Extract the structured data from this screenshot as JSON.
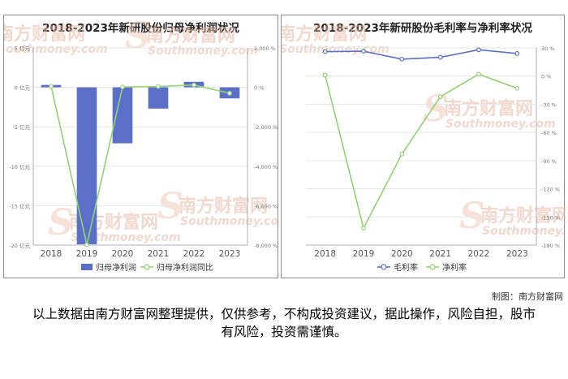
{
  "credit": "制图：南方财富网",
  "disclaimer": "以上数据由南方财富网整理提供，仅供参考，不构成投资建议，据此操作，风险自担，股市有风险，投资需谨慎。",
  "watermark": {
    "cn": "南方财富网",
    "en": "Southmoney.com"
  },
  "colors": {
    "bar": "#5b6fc8",
    "line_green": "#90d372",
    "line_blue": "#5b6fc8",
    "axis": "#b0b0b0"
  },
  "chart_data": [
    {
      "type": "bar",
      "title": "2018-2023年新研股份归母净利润状况",
      "categories": [
        "2018",
        "2019",
        "2020",
        "2021",
        "2022",
        "2023"
      ],
      "y_left": {
        "ticks": [
          5,
          0,
          -5,
          -10,
          -15,
          -20
        ],
        "tick_labels": [
          "5 亿元",
          "0 亿元",
          "-5 亿元",
          "-10 亿元",
          "-15 亿元",
          "-20 亿元"
        ],
        "range": [
          -20,
          5
        ]
      },
      "y_right": {
        "ticks": [
          2000,
          0,
          -2000,
          -4000,
          -6000,
          -8000
        ],
        "tick_labels": [
          "2,000 %",
          "0 %",
          "-2,000 %",
          "-4,000 %",
          "-6,000 %",
          "-8,000 %"
        ],
        "range": [
          -8000,
          2000
        ]
      },
      "series": [
        {
          "name": "归母净利润",
          "kind": "bar",
          "axis": "left",
          "values": [
            0.3,
            -19.9,
            -7.1,
            -2.7,
            0.7,
            -1.4
          ]
        },
        {
          "name": "归母净利润同比",
          "kind": "line",
          "axis": "right",
          "values": [
            50,
            -7980,
            20,
            40,
            120,
            -300
          ]
        }
      ],
      "legend": "bottom"
    },
    {
      "type": "line",
      "title": "2018-2023年新研股份毛利率与净利率状况",
      "categories": [
        "2018",
        "2019",
        "2020",
        "2021",
        "2022",
        "2023"
      ],
      "y_right": {
        "ticks": [
          30,
          0,
          -30,
          -60,
          -90,
          -120,
          -150,
          -180
        ],
        "tick_labels": [
          "30 %",
          "0 %",
          "-30 %",
          "-60 %",
          "-90 %",
          "-120 %",
          "-150 %",
          "-180 %"
        ],
        "range": [
          -180,
          30
        ]
      },
      "series": [
        {
          "name": "毛利率",
          "values": [
            26,
            26.5,
            18,
            20,
            28,
            24
          ]
        },
        {
          "name": "净利率",
          "values": [
            1,
            -162,
            -83,
            -22,
            2,
            -13
          ]
        }
      ],
      "legend": "bottom"
    }
  ]
}
